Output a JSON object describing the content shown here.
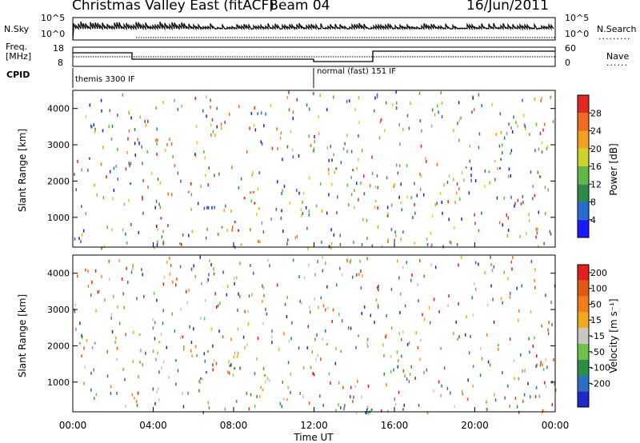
{
  "header": {
    "title": "Christmas Valley East (fitACF)",
    "beam": "Beam 04",
    "date": "16/Jun/2011"
  },
  "left_labels": {
    "nsky": "N.Sky",
    "freq_line1": "Freq.",
    "freq_line2": "[MHz]",
    "cpid": "CPID"
  },
  "right_labels": {
    "nsearch": "N.Search",
    "nave": "Nave"
  },
  "mini_ticks": {
    "nsky_top": "10^5",
    "nsky_bottom": "10^0",
    "freq_top": "18",
    "freq_bottom": "8",
    "nave_top": "60",
    "nave_bottom": "0"
  },
  "cpid_segments": [
    {
      "label": "themis 3300 IF",
      "start": "00:00",
      "end": "12:00"
    },
    {
      "label": "normal (fast) 151 IF",
      "start": "12:00",
      "end": "24:00"
    }
  ],
  "chart_data": [
    {
      "type": "heatmap",
      "name": "power",
      "ylabel": "Slant Range [km]",
      "ylim": [
        180,
        4500
      ],
      "yticks": [
        "1000",
        "2000",
        "3000",
        "4000"
      ],
      "xticks": [
        "00:00",
        "04:00",
        "08:00",
        "12:00",
        "16:00",
        "20:00",
        "00:00"
      ],
      "colorbar": {
        "label": "Power [dB]",
        "ticks": [
          "4",
          "8",
          "12",
          "16",
          "20",
          "24",
          "28"
        ],
        "colors": [
          "#1a1aff",
          "#2a6bd1",
          "#2f8a4a",
          "#63b64c",
          "#cfd22a",
          "#f1a023",
          "#f06a20",
          "#e4271f"
        ]
      },
      "regions": [
        {
          "x": [
            0.3,
            1.4
          ],
          "y": [
            2350,
            3150
          ],
          "level": 0.35
        },
        {
          "x": [
            0.3,
            2.4
          ],
          "y": [
            1850,
            2450
          ],
          "level": 0.45
        },
        {
          "x": [
            2.4,
            7.5
          ],
          "y": [
            1950,
            2150
          ],
          "level": 0.3
        },
        {
          "x": [
            2.8,
            11.2
          ],
          "y": [
            1200,
            1800
          ],
          "level": 0.75
        },
        {
          "x": [
            3.8,
            11.0
          ],
          "y": [
            650,
            1100
          ],
          "level": 0.9
        },
        {
          "x": [
            4.5,
            10.5
          ],
          "y": [
            300,
            500
          ],
          "level": 0.85
        },
        {
          "x": [
            12.6,
            23.6
          ],
          "y": [
            1800,
            2400
          ],
          "level": 0.4
        },
        {
          "x": [
            13.5,
            20.0
          ],
          "y": [
            1000,
            1500
          ],
          "level": 0.45
        },
        {
          "x": [
            17.5,
            21.5
          ],
          "y": [
            1900,
            2600
          ],
          "level": 0.55
        },
        {
          "x": [
            21.0,
            24.0
          ],
          "y": [
            2300,
            2900
          ],
          "level": 0.35
        },
        {
          "x": [
            0.0,
            24.0
          ],
          "y": [
            200,
            350
          ],
          "level": 0.5
        }
      ]
    },
    {
      "type": "heatmap",
      "name": "velocity",
      "ylabel": "Slant Range [km]",
      "ylim": [
        180,
        4500
      ],
      "yticks": [
        "1000",
        "2000",
        "3000",
        "4000"
      ],
      "xticks": [
        "00:00",
        "04:00",
        "08:00",
        "12:00",
        "16:00",
        "20:00",
        "00:00"
      ],
      "xlabel": "Time UT",
      "colorbar": {
        "label": "Velocity [m s⁻¹]",
        "ticks": [
          "200",
          "100",
          "50",
          "15",
          "-15",
          "-50",
          "-100",
          "-200"
        ],
        "colors": [
          "#1c2ac8",
          "#2b6fbf",
          "#2b8f44",
          "#6cc24a",
          "#c8c8c0",
          "#f0a81c",
          "#f07f18",
          "#e05a14",
          "#e0201a"
        ]
      },
      "regions": [
        {
          "x": [
            0.2,
            1.6
          ],
          "y": [
            2000,
            3100
          ],
          "vel": "15"
        },
        {
          "x": [
            1.6,
            7.5
          ],
          "y": [
            1400,
            2200
          ],
          "vel": "15"
        },
        {
          "x": [
            3.0,
            6.5
          ],
          "y": [
            1900,
            2500
          ],
          "vel": "-50"
        },
        {
          "x": [
            5.0,
            10.5
          ],
          "y": [
            700,
            1500
          ],
          "vel": "50"
        },
        {
          "x": [
            2.5,
            11.5
          ],
          "y": [
            400,
            900
          ],
          "vel": "-50"
        },
        {
          "x": [
            12.5,
            23.5
          ],
          "y": [
            1800,
            2400
          ],
          "vel": "15"
        },
        {
          "x": [
            15.5,
            16.0
          ],
          "y": [
            3200,
            3700
          ],
          "vel": "-200"
        },
        {
          "x": [
            0.0,
            24.0
          ],
          "y": [
            200,
            320
          ],
          "vel": "50"
        }
      ]
    }
  ]
}
